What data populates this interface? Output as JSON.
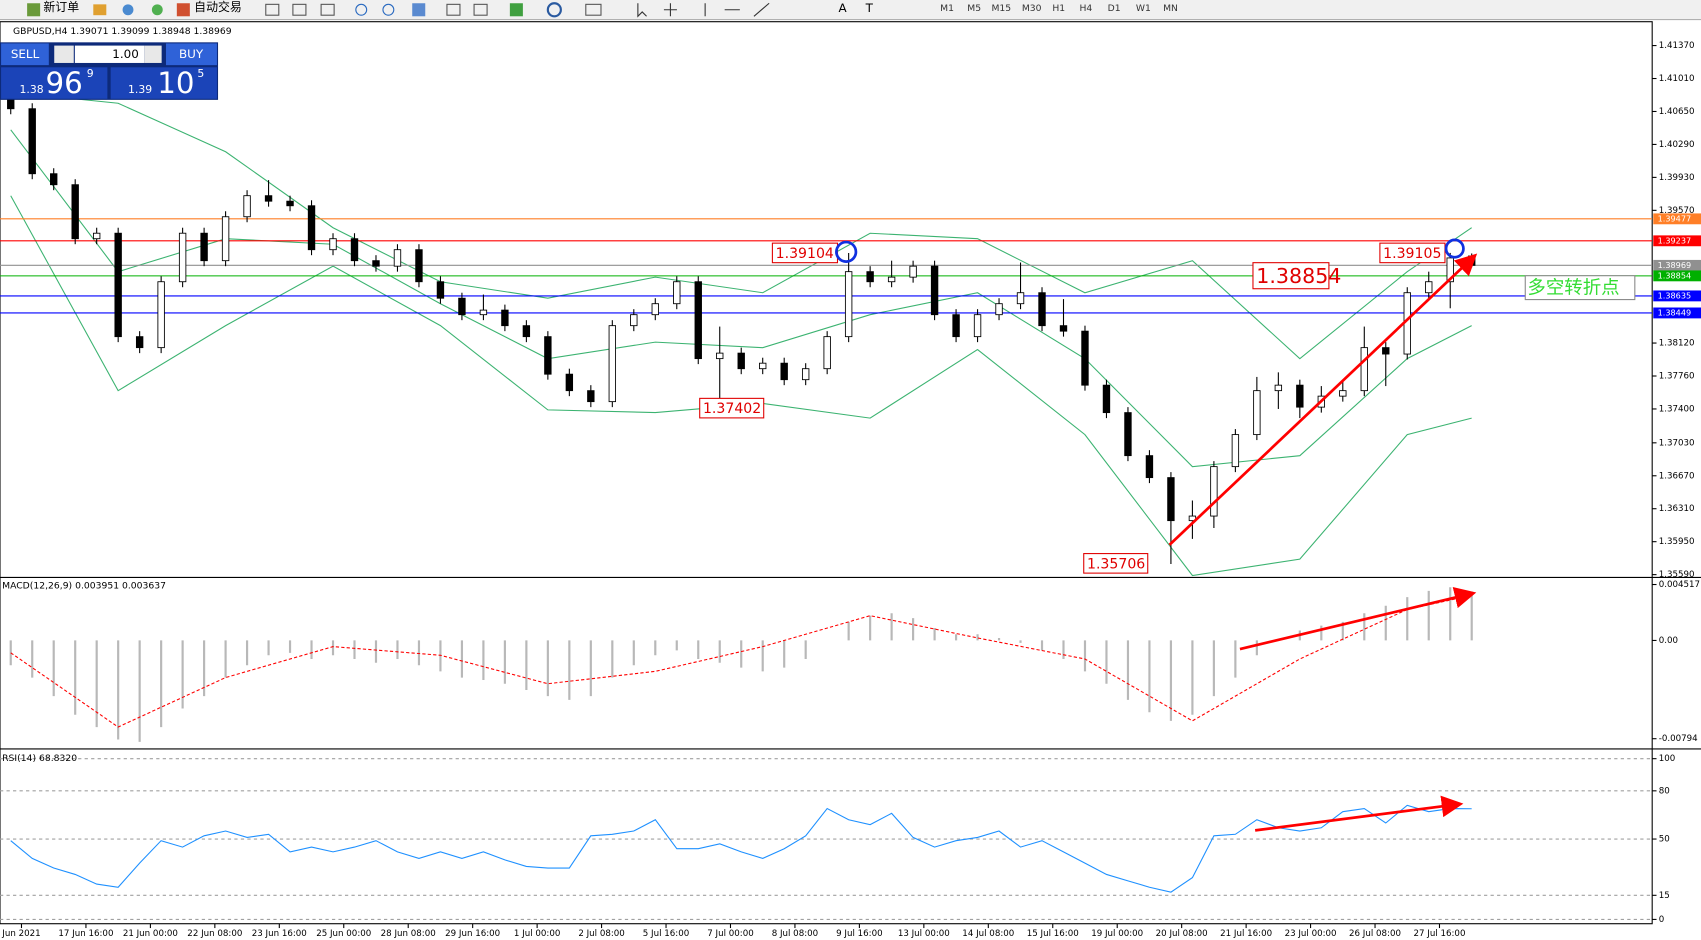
{
  "toolbar": {
    "new_order": "新订单",
    "auto_trading": "自动交易",
    "tools": [
      "A",
      "T"
    ],
    "timeframes": [
      "M1",
      "M5",
      "M15",
      "M30",
      "H1",
      "H4",
      "D1",
      "W1",
      "MN"
    ]
  },
  "trade_panel": {
    "sell": "SELL",
    "buy": "BUY",
    "lots": "1.00",
    "bid": {
      "prefix": "1.38",
      "pips": "96",
      "point": "9"
    },
    "ask": {
      "prefix": "1.39",
      "pips": "10",
      "point": "5"
    }
  },
  "chart_data": [
    {
      "type": "candlestick",
      "title": "GBPUSD,H4  1.39071 1.39099 1.38948 1.38969",
      "xlim": [
        -0.5,
        76.4
      ],
      "ylim": [
        1.35571,
        1.41607
      ],
      "yticks": [
        {
          "value": 1.4137,
          "label": "1.41370"
        },
        {
          "value": 1.4101,
          "label": "1.41010"
        },
        {
          "value": 1.4065,
          "label": "1.40650"
        },
        {
          "value": 1.4029,
          "label": "1.40290"
        },
        {
          "value": 1.3993,
          "label": "1.39930"
        },
        {
          "value": 1.3957,
          "label": "1.39570"
        },
        {
          "value": 1.3812,
          "label": "1.38120"
        },
        {
          "value": 1.3776,
          "label": "1.37760"
        },
        {
          "value": 1.374,
          "label": "1.37400"
        },
        {
          "value": 1.3703,
          "label": "1.37030"
        },
        {
          "value": 1.3667,
          "label": "1.36670"
        },
        {
          "value": 1.3631,
          "label": "1.36310"
        },
        {
          "value": 1.3595,
          "label": "1.35950"
        },
        {
          "value": 1.3559,
          "label": "1.35590"
        }
      ],
      "candles": [
        [
          1.409,
          1.4096,
          1.4062,
          1.4068
        ],
        [
          1.4068,
          1.4074,
          1.3991,
          1.3997
        ],
        [
          1.3997,
          1.4003,
          1.3979,
          1.3985
        ],
        [
          1.3985,
          1.3991,
          1.392,
          1.3926
        ],
        [
          1.3926,
          1.3938,
          1.392,
          1.3932
        ],
        [
          1.3932,
          1.3938,
          1.3813,
          1.3819
        ],
        [
          1.3819,
          1.3825,
          1.3801,
          1.3807
        ],
        [
          1.3807,
          1.3885,
          1.3801,
          1.3879
        ],
        [
          1.3879,
          1.3938,
          1.3873,
          1.3932
        ],
        [
          1.3932,
          1.3938,
          1.3896,
          1.3902
        ],
        [
          1.3902,
          1.3956,
          1.3896,
          1.395
        ],
        [
          1.395,
          1.3979,
          1.3944,
          1.3973
        ],
        [
          1.3973,
          1.399,
          1.3961,
          1.3967
        ],
        [
          1.3967,
          1.3973,
          1.3956,
          1.3962
        ],
        [
          1.3962,
          1.3968,
          1.3908,
          1.3914
        ],
        [
          1.3914,
          1.3932,
          1.3908,
          1.3926
        ],
        [
          1.3926,
          1.3932,
          1.3896,
          1.3902
        ],
        [
          1.3902,
          1.3908,
          1.389,
          1.3896
        ],
        [
          1.3896,
          1.392,
          1.389,
          1.3914
        ],
        [
          1.3914,
          1.392,
          1.3873,
          1.3879
        ],
        [
          1.3879,
          1.3885,
          1.3855,
          1.3861
        ],
        [
          1.3861,
          1.3867,
          1.3837,
          1.3843
        ],
        [
          1.3843,
          1.3865,
          1.3837,
          1.3848
        ],
        [
          1.3848,
          1.3854,
          1.3825,
          1.3831
        ],
        [
          1.3831,
          1.3837,
          1.3813,
          1.3819
        ],
        [
          1.3819,
          1.3825,
          1.3772,
          1.3778
        ],
        [
          1.3778,
          1.3784,
          1.3754,
          1.376
        ],
        [
          1.376,
          1.3766,
          1.3742,
          1.3748
        ],
        [
          1.3748,
          1.3837,
          1.3742,
          1.3831
        ],
        [
          1.3831,
          1.3849,
          1.3825,
          1.3843
        ],
        [
          1.3843,
          1.3861,
          1.3837,
          1.3855
        ],
        [
          1.3855,
          1.3885,
          1.3849,
          1.3879
        ],
        [
          1.3879,
          1.3885,
          1.3789,
          1.3795
        ],
        [
          1.3795,
          1.383,
          1.37402,
          1.3801
        ],
        [
          1.3801,
          1.3807,
          1.3778,
          1.3784
        ],
        [
          1.3784,
          1.3796,
          1.3778,
          1.379
        ],
        [
          1.379,
          1.3796,
          1.3766,
          1.3772
        ],
        [
          1.3772,
          1.379,
          1.3766,
          1.3784
        ],
        [
          1.3784,
          1.3825,
          1.3778,
          1.3819
        ],
        [
          1.3819,
          1.39104,
          1.3813,
          1.389
        ],
        [
          1.389,
          1.3896,
          1.3873,
          1.3879
        ],
        [
          1.3879,
          1.3902,
          1.3873,
          1.3884
        ],
        [
          1.3884,
          1.3902,
          1.3878,
          1.3896
        ],
        [
          1.3896,
          1.3902,
          1.3837,
          1.3843
        ],
        [
          1.3843,
          1.3849,
          1.3813,
          1.3819
        ],
        [
          1.3819,
          1.3849,
          1.3813,
          1.3843
        ],
        [
          1.3843,
          1.3861,
          1.3837,
          1.3855
        ],
        [
          1.3855,
          1.39,
          1.3849,
          1.3867
        ],
        [
          1.3867,
          1.3873,
          1.3825,
          1.3831
        ],
        [
          1.3831,
          1.386,
          1.3819,
          1.3825
        ],
        [
          1.3825,
          1.3831,
          1.376,
          1.3766
        ],
        [
          1.3766,
          1.3772,
          1.373,
          1.3736
        ],
        [
          1.3736,
          1.3742,
          1.3683,
          1.3689
        ],
        [
          1.3689,
          1.3695,
          1.3659,
          1.3665
        ],
        [
          1.3665,
          1.3671,
          1.35706,
          1.3618
        ],
        [
          1.3618,
          1.364,
          1.3598,
          1.3623
        ],
        [
          1.3623,
          1.3683,
          1.361,
          1.3677
        ],
        [
          1.3677,
          1.3718,
          1.3671,
          1.3712
        ],
        [
          1.3712,
          1.3775,
          1.3706,
          1.376
        ],
        [
          1.376,
          1.378,
          1.374,
          1.3766
        ],
        [
          1.3766,
          1.3772,
          1.373,
          1.3742
        ],
        [
          1.3742,
          1.3765,
          1.3736,
          1.3754
        ],
        [
          1.3754,
          1.377,
          1.3748,
          1.376
        ],
        [
          1.376,
          1.383,
          1.3754,
          1.3807
        ],
        [
          1.3807,
          1.3813,
          1.3765,
          1.38
        ],
        [
          1.38,
          1.3873,
          1.3794,
          1.3867
        ],
        [
          1.3867,
          1.389,
          1.3861,
          1.3879
        ],
        [
          1.3879,
          1.39105,
          1.385,
          1.3905
        ],
        [
          1.39071,
          1.39099,
          1.38948,
          1.38969
        ]
      ],
      "bands": {
        "color": "#3cb371",
        "x": [
          0,
          5,
          10,
          15,
          20,
          25,
          30,
          35,
          40,
          45,
          50,
          55,
          60,
          65,
          68
        ],
        "upper": [
          1.4086,
          1.4074,
          1.4021,
          1.3938,
          1.3879,
          1.3861,
          1.3884,
          1.3867,
          1.3932,
          1.3926,
          1.3867,
          1.3902,
          1.3795,
          1.389,
          1.3938
        ],
        "middle": [
          1.4045,
          1.389,
          1.3926,
          1.392,
          1.3855,
          1.3795,
          1.3813,
          1.3807,
          1.3843,
          1.3867,
          1.3795,
          1.3677,
          1.3689,
          1.3795,
          1.3831
        ],
        "lower": [
          1.3973,
          1.376,
          1.3831,
          1.3896,
          1.3831,
          1.3739,
          1.3736,
          1.3746,
          1.373,
          1.3805,
          1.3712,
          1.3558,
          1.3576,
          1.3712,
          1.373
        ]
      },
      "price_lines": [
        {
          "value": 1.39477,
          "color": "#ff7f27"
        },
        {
          "value": 1.39237,
          "color": "#ff0000"
        },
        {
          "value": 1.38969,
          "color": "#909090"
        },
        {
          "value": 1.38854,
          "color": "#00b000"
        },
        {
          "value": 1.38635,
          "color": "#0000ff"
        },
        {
          "value": 1.38449,
          "color": "#0000ff"
        }
      ],
      "price_labels": [
        1.39104,
        1.37402,
        1.35706,
        1.39105,
        1.38854
      ],
      "note": "多空转折点"
    },
    {
      "type": "bar",
      "title": "MACD(12,26,9) 0.003951 0.003637",
      "xlim": [
        -0.5,
        76.4
      ],
      "ylim": [
        -0.00868,
        0.005
      ],
      "yticks": [
        0.004517,
        {
          "value": 0,
          "label": "0.00"
        },
        -0.00794
      ],
      "series": [
        {
          "color": "#b8b8b8",
          "values": [
            -0.002,
            -0.003,
            -0.0045,
            -0.006,
            -0.007,
            -0.008,
            -0.0082,
            -0.007,
            -0.0055,
            -0.0045,
            -0.003,
            -0.002,
            -0.0012,
            -0.001,
            -0.0015,
            -0.0012,
            -0.0015,
            -0.0018,
            -0.0015,
            -0.002,
            -0.0025,
            -0.003,
            -0.0032,
            -0.0035,
            -0.004,
            -0.0045,
            -0.0048,
            -0.0045,
            -0.003,
            -0.002,
            -0.0012,
            -0.0008,
            -0.0015,
            -0.0018,
            -0.0022,
            -0.0025,
            -0.0022,
            -0.0015,
            0,
            0.0015,
            0.002,
            0.0022,
            0.0018,
            0.001,
            0.0005,
            0.0005,
            0.0002,
            -0.0002,
            -0.0008,
            -0.0015,
            -0.0025,
            -0.0035,
            -0.0048,
            -0.0058,
            -0.0065,
            -0.006,
            -0.0045,
            -0.003,
            -0.0012,
            0,
            0.0008,
            0.0012,
            0.0015,
            0.0022,
            0.0028,
            0.0035,
            0.004,
            0.0043,
            0.003951
          ]
        },
        {
          "type": "line",
          "color": "#ff0000",
          "dashed": true,
          "x": [
            0,
            5,
            10,
            15,
            20,
            25,
            30,
            35,
            40,
            45,
            50,
            55,
            60,
            65,
            68
          ],
          "values": [
            -0.001,
            -0.007,
            -0.003,
            -0.0005,
            -0.0012,
            -0.0035,
            -0.0025,
            -0.0005,
            0.002,
            0.0002,
            -0.0015,
            -0.0065,
            -0.0015,
            0.0025,
            0.003637
          ]
        }
      ]
    },
    {
      "type": "line",
      "title": "RSI(14) 68.8320",
      "xlim": [
        -0.5,
        76.4
      ],
      "ylim": [
        -2,
        104.7
      ],
      "yticks": [
        100,
        80,
        50,
        15,
        0
      ],
      "grid": "dashed",
      "series": [
        {
          "color": "#1e90ff",
          "values": [
            49,
            38,
            32,
            28,
            22,
            20,
            35,
            49,
            45,
            52,
            55,
            51,
            53,
            42,
            45,
            42,
            45,
            49,
            42,
            38,
            42,
            38,
            42,
            37,
            33,
            32,
            32,
            52,
            53,
            55,
            62,
            44,
            44,
            47,
            42,
            38,
            44,
            52,
            69,
            62,
            59,
            66,
            51,
            45,
            49,
            51,
            55,
            45,
            49,
            42,
            35,
            28,
            24,
            20,
            17,
            26,
            52,
            53,
            62,
            57,
            55,
            57,
            67,
            69,
            60,
            71,
            67,
            69,
            68.832
          ]
        }
      ],
      "xticks": [
        {
          "value": 0.5,
          "label": "Jun 2021"
        },
        {
          "value": 3.5,
          "label": "17 Jun 16:00"
        },
        {
          "value": 6.5,
          "label": "21 Jun 00:00"
        },
        {
          "value": 9.5,
          "label": "22 Jun 08:00"
        },
        {
          "value": 12.5,
          "label": "23 Jun 16:00"
        },
        {
          "value": 15.5,
          "label": "25 Jun 00:00"
        },
        {
          "value": 18.5,
          "label": "28 Jun 08:00"
        },
        {
          "value": 21.5,
          "label": "29 Jun 16:00"
        },
        {
          "value": 24.5,
          "label": "1 Jul 00:00"
        },
        {
          "value": 27.5,
          "label": "2 Jul 08:00"
        },
        {
          "value": 30.5,
          "label": "5 Jul 16:00"
        },
        {
          "value": 33.5,
          "label": "7 Jul 00:00"
        },
        {
          "value": 36.5,
          "label": "8 Jul 08:00"
        },
        {
          "value": 39.5,
          "label": "9 Jul 16:00"
        },
        {
          "value": 42.5,
          "label": "13 Jul 00:00"
        },
        {
          "value": 45.5,
          "label": "14 Jul 08:00"
        },
        {
          "value": 48.5,
          "label": "15 Jul 16:00"
        },
        {
          "value": 51.5,
          "label": "19 Jul 00:00"
        },
        {
          "value": 54.5,
          "label": "20 Jul 08:00"
        },
        {
          "value": 57.5,
          "label": "21 Jul 16:00"
        },
        {
          "value": 60.5,
          "label": "23 Jul 00:00"
        },
        {
          "value": 63.5,
          "label": "26 Jul 08:00"
        },
        {
          "value": 66.5,
          "label": "27 Jul 16:00"
        }
      ]
    }
  ]
}
